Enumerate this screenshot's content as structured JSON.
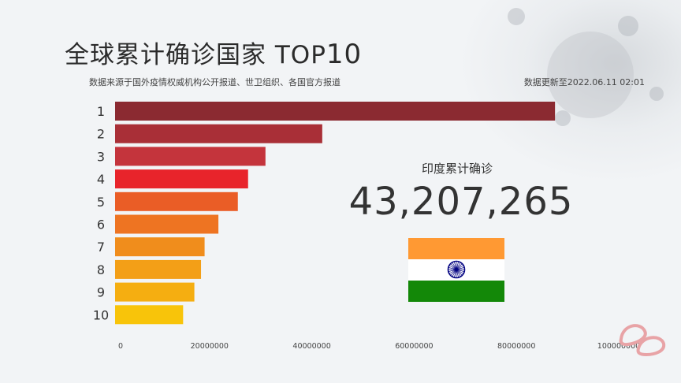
{
  "title": "全球累计确诊国家",
  "title_suffix": "TOP",
  "title_number": "10",
  "subtitle": "数据来源于国外疫情权威机构公开报道、世卫组织、各国官方报道",
  "updated": "数据更新至2022.06.11 02:01",
  "highlight": {
    "label": "印度累计确诊",
    "value": "43,207,265",
    "flag_icon": "india-flag-icon"
  },
  "colors": {
    "background": "#f2f4f6",
    "flag_saffron": "#ff9933",
    "flag_green": "#138808",
    "chakra": "#000080"
  },
  "chart_data": {
    "type": "bar",
    "orientation": "horizontal",
    "title": "全球累计确诊国家 TOP 10",
    "categories": [
      "1",
      "2",
      "3",
      "4",
      "5",
      "6",
      "7",
      "8",
      "9",
      "10"
    ],
    "values": [
      86000000,
      40500000,
      29400000,
      26000000,
      24000000,
      20200000,
      17500000,
      16800000,
      15500000,
      13300000
    ],
    "colors": [
      "#8b2a31",
      "#a92f37",
      "#c4343c",
      "#e8242b",
      "#ea5d26",
      "#ee7422",
      "#f08d1c",
      "#f39f17",
      "#f5ae11",
      "#f8c40a"
    ],
    "xlim": [
      0,
      100000000
    ],
    "xticks": [
      "0",
      "20000000",
      "40000000",
      "60000000",
      "80000000",
      "100000000"
    ],
    "grid": false,
    "legend": "none"
  }
}
